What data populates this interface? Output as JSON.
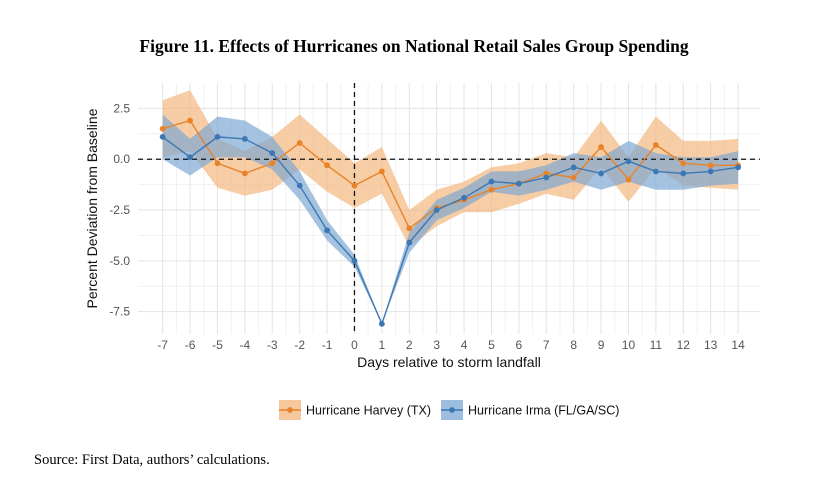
{
  "title": "Figure 11. Effects of Hurricanes on National Retail Sales Group Spending",
  "source": "Source: First Data, authors’ calculations.",
  "chart_data": {
    "type": "line",
    "xlabel": "Days relative to storm landfall",
    "ylabel": "Percent Deviation from Baseline",
    "x": [
      -7,
      -6,
      -5,
      -4,
      -3,
      -2,
      -1,
      0,
      1,
      2,
      3,
      4,
      5,
      6,
      7,
      8,
      9,
      10,
      11,
      12,
      13,
      14
    ],
    "xticks": [
      "-7",
      "-6",
      "-5",
      "-4",
      "-3",
      "-2",
      "-1",
      "0",
      "1",
      "2",
      "3",
      "4",
      "5",
      "6",
      "7",
      "8",
      "9",
      "10",
      "11",
      "12",
      "13",
      "14"
    ],
    "yticks": [
      "2.5",
      "0.0",
      "-2.5",
      "-5.0",
      "-7.5"
    ],
    "ytick_values": [
      2.5,
      0,
      -2.5,
      -5,
      -7.5
    ],
    "xlim": [
      -7.9,
      14.8
    ],
    "ylim": [
      -8.6,
      3.75
    ],
    "grid": true,
    "reference_lines": {
      "y": 0,
      "x": 0,
      "style": "dashed"
    },
    "legend_position": "bottom",
    "series": [
      {
        "name": "Hurricane Harvey (TX)",
        "color": "#e8832a",
        "band_color": "#f3b57c",
        "values": [
          1.5,
          1.9,
          -0.2,
          -0.7,
          -0.2,
          0.8,
          -0.3,
          -1.3,
          -0.6,
          -3.4,
          -2.4,
          -2.0,
          -1.5,
          -1.2,
          -0.7,
          -0.9,
          0.6,
          -1.0,
          0.7,
          -0.2,
          -0.3,
          -0.3
        ],
        "lower": [
          0.1,
          0.4,
          -1.4,
          -1.8,
          -1.5,
          -0.5,
          -1.6,
          -2.4,
          -1.7,
          -4.3,
          -3.3,
          -2.6,
          -2.6,
          -2.2,
          -1.7,
          -2.0,
          -0.4,
          -2.1,
          -0.4,
          -1.3,
          -1.4,
          -1.5
        ],
        "upper": [
          2.9,
          3.4,
          1.0,
          0.4,
          1.1,
          2.2,
          1.0,
          -0.2,
          0.6,
          -2.5,
          -1.5,
          -1.1,
          -0.4,
          -0.2,
          0.3,
          0.1,
          1.9,
          0.1,
          2.1,
          0.9,
          0.9,
          1.0
        ]
      },
      {
        "name": "Hurricane Irma (FL/GA/SC)",
        "color": "#3c78b4",
        "band_color": "#7ba7d2",
        "values": [
          1.1,
          0.1,
          1.1,
          1.0,
          0.3,
          -1.3,
          -3.5,
          -5.0,
          -8.1,
          -4.1,
          -2.5,
          -1.9,
          -1.1,
          -1.2,
          -0.9,
          -0.4,
          -0.7,
          -0.1,
          -0.6,
          -0.7,
          -0.6,
          -0.4
        ],
        "lower": [
          0.0,
          -0.8,
          0.1,
          0.1,
          -0.5,
          -2.0,
          -4.0,
          -5.3,
          -8.1,
          -4.6,
          -3.0,
          -2.4,
          -1.6,
          -1.8,
          -1.5,
          -1.1,
          -1.5,
          -1.1,
          -1.5,
          -1.5,
          -1.3,
          -1.2
        ],
        "upper": [
          2.2,
          1.0,
          2.1,
          1.9,
          1.1,
          -0.6,
          -3.0,
          -4.7,
          -8.1,
          -3.6,
          -2.0,
          -1.4,
          -0.6,
          -0.6,
          -0.3,
          0.3,
          0.1,
          0.9,
          0.3,
          0.1,
          0.1,
          0.4
        ]
      }
    ]
  }
}
